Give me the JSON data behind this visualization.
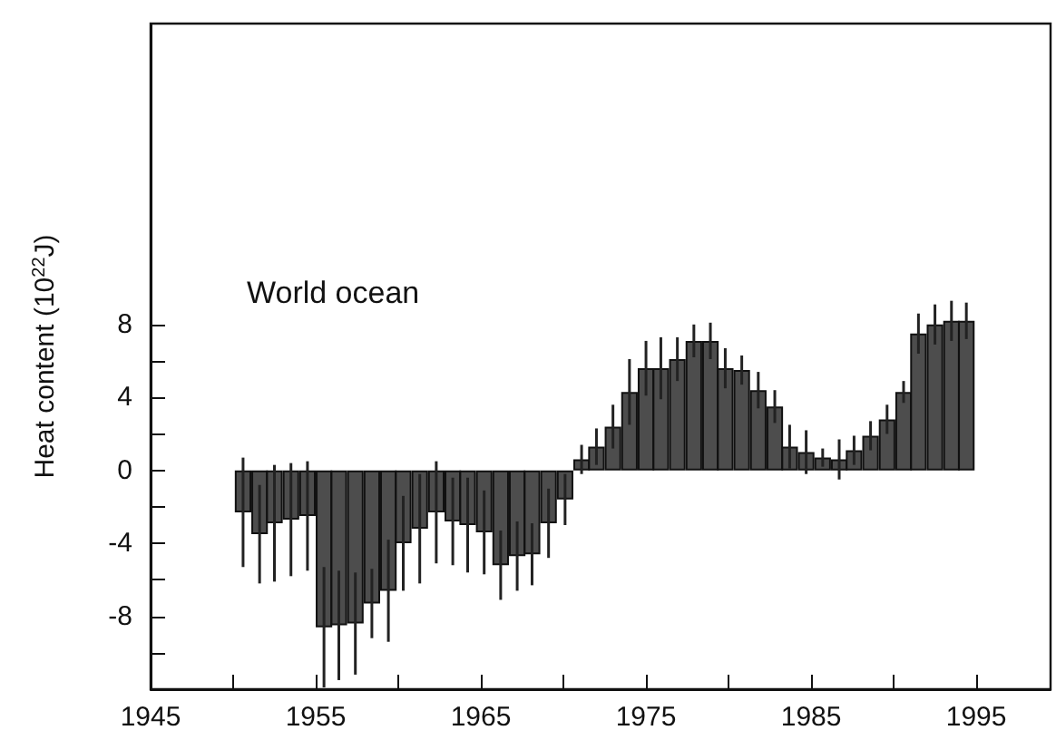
{
  "chart_data": {
    "type": "bar",
    "title": "World ocean",
    "ylabel": "Heat content (10$^{22}$J)",
    "x": [
      1950.6,
      1951.6,
      1952.5,
      1953.5,
      1954.5,
      1955.5,
      1956.4,
      1957.4,
      1958.4,
      1959.4,
      1960.3,
      1961.3,
      1962.3,
      1963.3,
      1964.2,
      1965.2,
      1966.2,
      1967.2,
      1968.1,
      1969.1,
      1970.1,
      1971.1,
      1972.0,
      1973.0,
      1974.0,
      1975.0,
      1975.9,
      1976.9,
      1977.9,
      1978.9,
      1979.8,
      1980.8,
      1981.8,
      1982.8,
      1983.7,
      1984.7,
      1985.7,
      1986.7,
      1987.6,
      1988.6,
      1989.6,
      1990.6,
      1991.5,
      1992.5,
      1993.5,
      1994.4
    ],
    "series": [
      {
        "color": "#4d4d4d",
        "values": [
          -2.3,
          -3.5,
          -2.9,
          -2.7,
          -2.5,
          -8.6,
          -8.5,
          -8.4,
          -7.3,
          -6.6,
          -4.0,
          -3.2,
          -2.3,
          -2.8,
          -3.0,
          -3.4,
          -5.2,
          -4.7,
          -4.6,
          -2.9,
          -1.6,
          0.6,
          1.3,
          2.4,
          4.3,
          5.6,
          5.6,
          6.1,
          7.1,
          7.1,
          5.6,
          5.5,
          4.4,
          3.5,
          1.3,
          1.0,
          0.7,
          0.6,
          1.1,
          1.9,
          2.8,
          4.3,
          7.5,
          8.0,
          8.2,
          8.2
        ],
        "errors": [
          3.0,
          2.7,
          3.2,
          3.1,
          3.0,
          3.3,
          3.0,
          2.8,
          1.9,
          2.8,
          2.6,
          3.0,
          2.8,
          2.4,
          2.6,
          2.3,
          1.9,
          1.9,
          1.7,
          1.9,
          1.4,
          0.8,
          1.0,
          1.2,
          1.8,
          1.5,
          1.7,
          1.2,
          0.9,
          1.0,
          1.1,
          0.8,
          1.0,
          0.9,
          1.2,
          1.2,
          0.5,
          1.1,
          0.8,
          0.8,
          0.8,
          0.6,
          1.1,
          1.1,
          1.1,
          1.0
        ]
      }
    ],
    "xlim": [
      1945,
      1999.5
    ],
    "ylim": [
      -12,
      24.5
    ],
    "xticks": [
      1945,
      {
        "value": 1950,
        "label": null
      },
      1955,
      {
        "value": 1960,
        "label": null
      },
      1965,
      {
        "value": 1970,
        "label": null
      },
      1975,
      {
        "value": 1980,
        "label": null
      },
      1985,
      {
        "value": 1990,
        "label": null
      },
      1995
    ],
    "yticks": [
      {
        "value": -10,
        "label": null
      },
      -8,
      {
        "value": -6,
        "label": null
      },
      -4,
      {
        "value": -2,
        "label": null
      },
      0,
      {
        "value": 2,
        "label": null
      },
      4,
      {
        "value": 6,
        "label": null
      },
      8
    ],
    "grid": false
  }
}
